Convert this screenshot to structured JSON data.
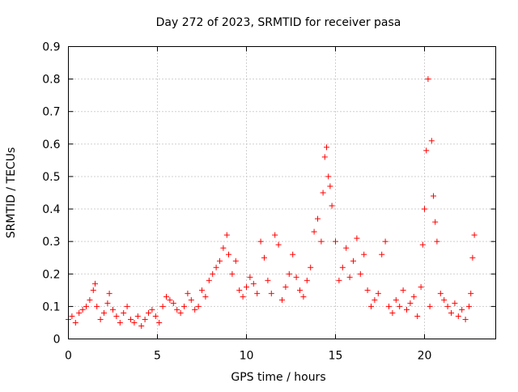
{
  "chart_data": {
    "type": "scatter",
    "title": "Day 272 of 2023, SRMTID for receiver pasa",
    "xlabel": "GPS time / hours",
    "ylabel": "SRMTID / TECUs",
    "xlim": [
      0,
      24
    ],
    "ylim": [
      0,
      0.9
    ],
    "xticks": [
      0,
      5,
      10,
      15,
      20
    ],
    "xtick_labels": [
      "0",
      "5",
      "10",
      "15",
      "20"
    ],
    "yticks": [
      0,
      0.1,
      0.2,
      0.3,
      0.4,
      0.5,
      0.6,
      0.7,
      0.8,
      0.9
    ],
    "ytick_labels": [
      "0",
      "0.1",
      "0.2",
      "0.3",
      "0.4",
      "0.5",
      "0.6",
      "0.7",
      "0.8",
      "0.9"
    ],
    "grid": true,
    "marker": "+",
    "color": "#ff0000",
    "series": [
      {
        "name": "SRMTID",
        "x": [
          0.0,
          0.2,
          0.4,
          0.6,
          0.8,
          1.0,
          1.2,
          1.4,
          1.5,
          1.6,
          1.8,
          2.0,
          2.2,
          2.3,
          2.5,
          2.7,
          2.9,
          3.1,
          3.3,
          3.5,
          3.7,
          3.9,
          4.1,
          4.3,
          4.5,
          4.7,
          4.9,
          5.1,
          5.3,
          5.5,
          5.7,
          5.9,
          6.1,
          6.3,
          6.5,
          6.7,
          6.9,
          7.1,
          7.3,
          7.5,
          7.7,
          7.9,
          8.1,
          8.3,
          8.5,
          8.7,
          8.9,
          9.0,
          9.2,
          9.4,
          9.6,
          9.8,
          10.0,
          10.2,
          10.4,
          10.6,
          10.8,
          11.0,
          11.2,
          11.4,
          11.6,
          11.8,
          12.0,
          12.2,
          12.4,
          12.6,
          12.8,
          13.0,
          13.2,
          13.4,
          13.6,
          13.8,
          14.0,
          14.2,
          14.3,
          14.4,
          14.5,
          14.6,
          14.7,
          14.8,
          15.0,
          15.2,
          15.4,
          15.6,
          15.8,
          16.0,
          16.2,
          16.4,
          16.6,
          16.8,
          17.0,
          17.2,
          17.4,
          17.6,
          17.8,
          18.0,
          18.2,
          18.4,
          18.6,
          18.8,
          19.0,
          19.2,
          19.4,
          19.6,
          19.8,
          19.9,
          20.0,
          20.1,
          20.2,
          20.3,
          20.4,
          20.5,
          20.6,
          20.7,
          20.9,
          21.1,
          21.3,
          21.5,
          21.7,
          21.9,
          22.1,
          22.3,
          22.5,
          22.6,
          22.7,
          22.8
        ],
        "y": [
          0.06,
          0.07,
          0.05,
          0.08,
          0.09,
          0.1,
          0.12,
          0.15,
          0.17,
          0.1,
          0.06,
          0.08,
          0.11,
          0.14,
          0.09,
          0.07,
          0.05,
          0.08,
          0.1,
          0.06,
          0.05,
          0.07,
          0.04,
          0.06,
          0.08,
          0.09,
          0.07,
          0.05,
          0.1,
          0.13,
          0.12,
          0.11,
          0.09,
          0.08,
          0.1,
          0.14,
          0.12,
          0.09,
          0.1,
          0.15,
          0.13,
          0.18,
          0.2,
          0.22,
          0.24,
          0.28,
          0.32,
          0.26,
          0.2,
          0.24,
          0.15,
          0.13,
          0.16,
          0.19,
          0.17,
          0.14,
          0.3,
          0.25,
          0.18,
          0.14,
          0.32,
          0.29,
          0.12,
          0.16,
          0.2,
          0.26,
          0.19,
          0.15,
          0.13,
          0.18,
          0.22,
          0.33,
          0.37,
          0.3,
          0.45,
          0.56,
          0.59,
          0.5,
          0.47,
          0.41,
          0.3,
          0.18,
          0.22,
          0.28,
          0.19,
          0.24,
          0.31,
          0.2,
          0.26,
          0.15,
          0.1,
          0.12,
          0.14,
          0.26,
          0.3,
          0.1,
          0.08,
          0.12,
          0.1,
          0.15,
          0.09,
          0.11,
          0.13,
          0.07,
          0.16,
          0.29,
          0.4,
          0.58,
          0.8,
          0.1,
          0.61,
          0.44,
          0.36,
          0.3,
          0.14,
          0.12,
          0.1,
          0.08,
          0.11,
          0.07,
          0.09,
          0.06,
          0.1,
          0.14,
          0.25,
          0.32
        ]
      }
    ]
  }
}
